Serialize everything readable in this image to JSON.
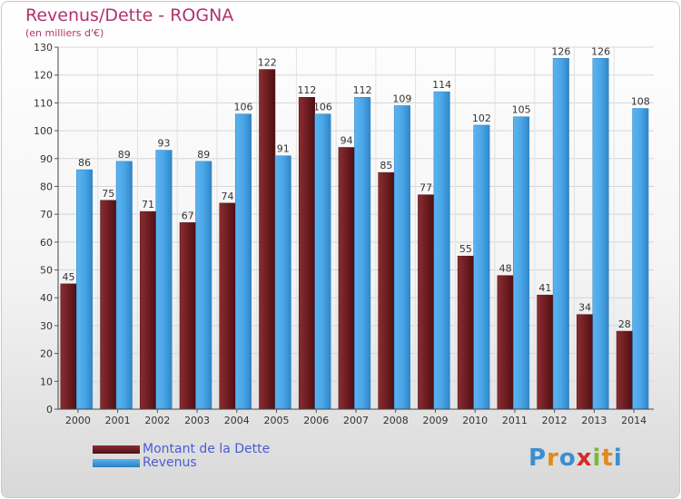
{
  "title": "Revenus/Dette - ROGNA",
  "subtitle": "(en milliers d'€)",
  "colors": {
    "dette": "#7a2428",
    "dette_dark": "#4e0f12",
    "revenus": "#4aa6e8",
    "revenus_dark": "#2b7fc0",
    "title": "#b3316d",
    "legend_text": "#4a5bd6"
  },
  "legend": [
    {
      "label": "Montant de la Dette",
      "series": "dette"
    },
    {
      "label": "Revenus",
      "series": "revenus"
    }
  ],
  "brand": {
    "text": "Proxiti"
  },
  "chart_data": {
    "type": "bar",
    "categories": [
      "2000",
      "2001",
      "2002",
      "2003",
      "2004",
      "2005",
      "2006",
      "2007",
      "2008",
      "2009",
      "2010",
      "2011",
      "2012",
      "2013",
      "2014"
    ],
    "series": [
      {
        "name": "Montant de la Dette",
        "values": [
          45,
          75,
          71,
          67,
          74,
          122,
          112,
          94,
          85,
          77,
          55,
          48,
          41,
          34,
          28
        ]
      },
      {
        "name": "Revenus",
        "values": [
          86,
          89,
          93,
          89,
          106,
          91,
          106,
          112,
          109,
          114,
          102,
          105,
          126,
          126,
          108
        ]
      }
    ],
    "ylim": [
      0,
      130
    ],
    "yticks": [
      0,
      10,
      20,
      30,
      40,
      50,
      60,
      70,
      80,
      90,
      100,
      110,
      120,
      130
    ],
    "grid": true,
    "legend_position": "bottom-left"
  }
}
